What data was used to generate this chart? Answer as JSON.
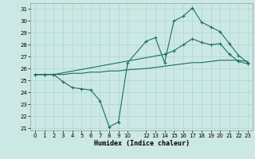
{
  "xlabel": "Humidex (Indice chaleur)",
  "bg_color": "#cce8e4",
  "grid_color": "#aad8d4",
  "line_color": "#1a6e64",
  "ylim": [
    20.8,
    31.5
  ],
  "xlim": [
    -0.5,
    23.5
  ],
  "yticks": [
    21,
    22,
    23,
    24,
    25,
    26,
    27,
    28,
    29,
    30,
    31
  ],
  "xticks": [
    0,
    1,
    2,
    3,
    4,
    5,
    6,
    7,
    8,
    9,
    10,
    12,
    13,
    14,
    15,
    16,
    17,
    18,
    19,
    20,
    21,
    22,
    23
  ],
  "line1_x": [
    0,
    1,
    2,
    3,
    4,
    5,
    6,
    7,
    8,
    9,
    10,
    12,
    13,
    14,
    15,
    16,
    17,
    18,
    19,
    20,
    21,
    22,
    23
  ],
  "line1_y": [
    25.5,
    25.5,
    25.5,
    24.9,
    24.4,
    24.3,
    24.2,
    23.3,
    21.1,
    21.5,
    26.5,
    28.3,
    28.6,
    26.5,
    30.0,
    30.4,
    31.1,
    29.9,
    29.5,
    29.1,
    28.1,
    27.1,
    26.5
  ],
  "line2_x": [
    0,
    1,
    2,
    3,
    4,
    5,
    6,
    7,
    8,
    9,
    10,
    12,
    13,
    14,
    15,
    16,
    17,
    18,
    19,
    20,
    21,
    22,
    23
  ],
  "line2_y": [
    25.5,
    25.5,
    25.5,
    25.5,
    25.6,
    25.6,
    25.7,
    25.7,
    25.8,
    25.8,
    25.9,
    26.0,
    26.1,
    26.2,
    26.3,
    26.4,
    26.5,
    26.5,
    26.6,
    26.7,
    26.7,
    26.7,
    26.6
  ],
  "line3_x": [
    0,
    1,
    2,
    14,
    15,
    16,
    17,
    18,
    19,
    20,
    21,
    22,
    23
  ],
  "line3_y": [
    25.5,
    25.5,
    25.5,
    27.2,
    27.5,
    28.0,
    28.5,
    28.2,
    28.0,
    28.1,
    27.2,
    26.6,
    26.4
  ]
}
